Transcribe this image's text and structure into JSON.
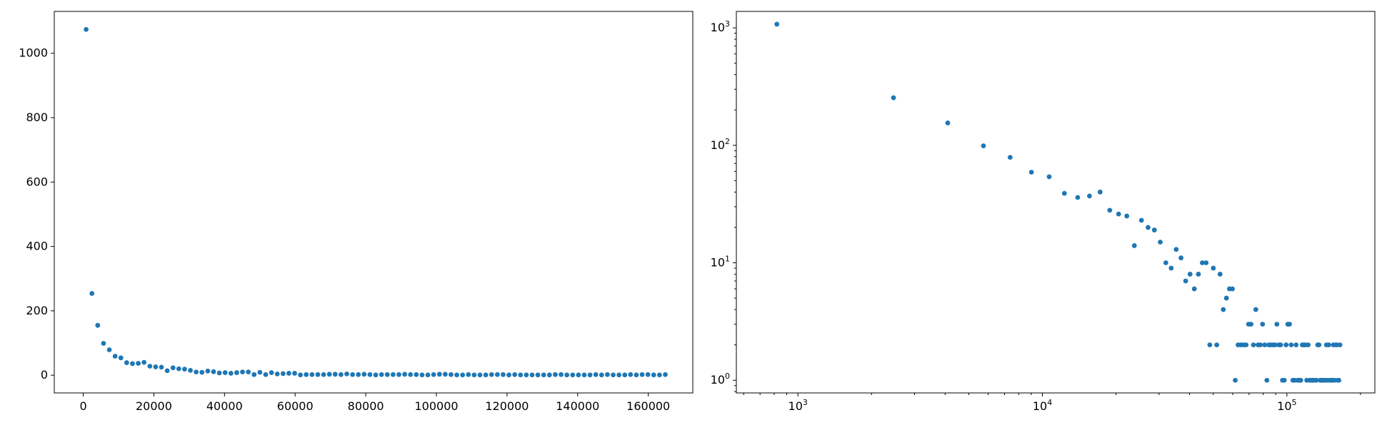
{
  "colors": {
    "marker": "#1f77b4",
    "axes": "#000000",
    "background": "#ffffff"
  },
  "chart_data": [
    {
      "type": "scatter",
      "title": "",
      "xlabel": "",
      "ylabel": "",
      "xscale": "linear",
      "yscale": "linear",
      "grid": false,
      "xlim": [
        -8200,
        172600
      ],
      "ylim": [
        -55,
        1130
      ],
      "xticks": [
        {
          "value": 0,
          "label": "0"
        },
        {
          "value": 20000,
          "label": "20000"
        },
        {
          "value": 40000,
          "label": "40000"
        },
        {
          "value": 60000,
          "label": "60000"
        },
        {
          "value": 80000,
          "label": "80000"
        },
        {
          "value": 100000,
          "label": "100000"
        },
        {
          "value": 120000,
          "label": "120000"
        },
        {
          "value": 140000,
          "label": "140000"
        },
        {
          "value": 160000,
          "label": "160000"
        }
      ],
      "yticks": [
        {
          "value": 0,
          "label": "0"
        },
        {
          "value": 200,
          "label": "200"
        },
        {
          "value": 400,
          "label": "400"
        },
        {
          "value": 600,
          "label": "600"
        },
        {
          "value": 800,
          "label": "800"
        },
        {
          "value": 1000,
          "label": "1000"
        }
      ],
      "series": [
        {
          "x": [
            820,
            2460,
            4100,
            5740,
            7380,
            9020,
            10660,
            12300,
            13940,
            15580,
            17220,
            18860,
            20500,
            22140,
            23780,
            25420,
            27060,
            28700,
            30340,
            31980,
            33620,
            35260,
            36900,
            38540,
            40180,
            41820,
            43460,
            45100,
            46740,
            48380,
            50020,
            51660,
            53300,
            54940,
            56580,
            58220,
            59860,
            61500,
            63140,
            64780,
            66420,
            68060,
            69700,
            71340,
            72980,
            74620,
            76260,
            77900,
            79540,
            81180,
            82820,
            84460,
            86100,
            87740,
            89380,
            91020,
            92660,
            94300,
            95940,
            97580,
            99220,
            100860,
            102500,
            104140,
            105780,
            107420,
            109060,
            110700,
            112340,
            113980,
            115620,
            117260,
            118900,
            120540,
            122180,
            123820,
            125460,
            127100,
            128740,
            130380,
            132020,
            133660,
            135300,
            136940,
            138580,
            140220,
            141860,
            143500,
            145140,
            146780,
            148420,
            150060,
            151700,
            153340,
            154980,
            156620,
            158260,
            159900,
            161540,
            163180,
            164820
          ],
          "y": [
            1074,
            254,
            155,
            99,
            79,
            59,
            54,
            39,
            36,
            37,
            40,
            28,
            26,
            25,
            14,
            23,
            20,
            19,
            15,
            10,
            9,
            13,
            11,
            7,
            8,
            6,
            8,
            10,
            10,
            2,
            9,
            2,
            8,
            4,
            5,
            6,
            6,
            1,
            2,
            2,
            2,
            2,
            3,
            3,
            2,
            4,
            2,
            2,
            3,
            2,
            1,
            2,
            2,
            2,
            2,
            3,
            2,
            2,
            1,
            1,
            2,
            3,
            3,
            2,
            1,
            1,
            2,
            1,
            1,
            1,
            2,
            2,
            2,
            1,
            2,
            1,
            1,
            1,
            1,
            1,
            1,
            2,
            2,
            1,
            1,
            1,
            1,
            1,
            2,
            1,
            2,
            1,
            1,
            1,
            2,
            1,
            2,
            2,
            1,
            1,
            2
          ]
        }
      ]
    },
    {
      "type": "scatter",
      "title": "",
      "xlabel": "",
      "ylabel": "",
      "xscale": "log",
      "yscale": "log",
      "grid": false,
      "xlim": [
        560,
        229000
      ],
      "ylim": [
        0.78,
        1380
      ],
      "xticks": [
        {
          "value": 1000,
          "base": "10",
          "exp": "3"
        },
        {
          "value": 10000,
          "base": "10",
          "exp": "4"
        },
        {
          "value": 100000,
          "base": "10",
          "exp": "5"
        }
      ],
      "yticks": [
        {
          "value": 1,
          "base": "10",
          "exp": "0"
        },
        {
          "value": 10,
          "base": "10",
          "exp": "1"
        },
        {
          "value": 100,
          "base": "10",
          "exp": "2"
        },
        {
          "value": 1000,
          "base": "10",
          "exp": "3"
        }
      ],
      "series": [
        {
          "x": [
            820,
            2460,
            4100,
            5740,
            7380,
            9020,
            10660,
            12300,
            13940,
            15580,
            17220,
            18860,
            20500,
            22140,
            23780,
            25420,
            27060,
            28700,
            30340,
            31980,
            33620,
            35260,
            36900,
            38540,
            40180,
            41820,
            43460,
            45100,
            46740,
            48380,
            50020,
            51660,
            53300,
            54940,
            56580,
            58220,
            59860,
            61500,
            63140,
            64780,
            66420,
            68060,
            69700,
            71340,
            72980,
            74620,
            76260,
            77900,
            79540,
            81180,
            82820,
            84460,
            86100,
            87740,
            89380,
            91020,
            92660,
            94300,
            95940,
            97580,
            99220,
            100860,
            102500,
            104140,
            105780,
            107420,
            109060,
            110700,
            112340,
            113980,
            115620,
            117260,
            118900,
            120540,
            122180,
            123820,
            125460,
            127100,
            128740,
            130380,
            132020,
            133660,
            135300,
            136940,
            138580,
            140220,
            141860,
            143500,
            145140,
            146780,
            148420,
            150060,
            151700,
            153340,
            154980,
            156620,
            158260,
            159900,
            161540,
            163180,
            164820
          ],
          "y": [
            1074,
            254,
            155,
            99,
            79,
            59,
            54,
            39,
            36,
            37,
            40,
            28,
            26,
            25,
            14,
            23,
            20,
            19,
            15,
            10,
            9,
            13,
            11,
            7,
            8,
            6,
            8,
            10,
            10,
            2,
            9,
            2,
            8,
            4,
            5,
            6,
            6,
            1,
            2,
            2,
            2,
            2,
            3,
            3,
            2,
            4,
            2,
            2,
            3,
            2,
            1,
            2,
            2,
            2,
            2,
            3,
            2,
            2,
            1,
            1,
            2,
            3,
            3,
            2,
            1,
            1,
            2,
            1,
            1,
            1,
            2,
            2,
            2,
            1,
            2,
            1,
            1,
            1,
            1,
            1,
            1,
            2,
            2,
            1,
            1,
            1,
            1,
            1,
            2,
            1,
            2,
            1,
            1,
            1,
            2,
            1,
            2,
            2,
            1,
            1,
            2
          ]
        }
      ]
    }
  ]
}
